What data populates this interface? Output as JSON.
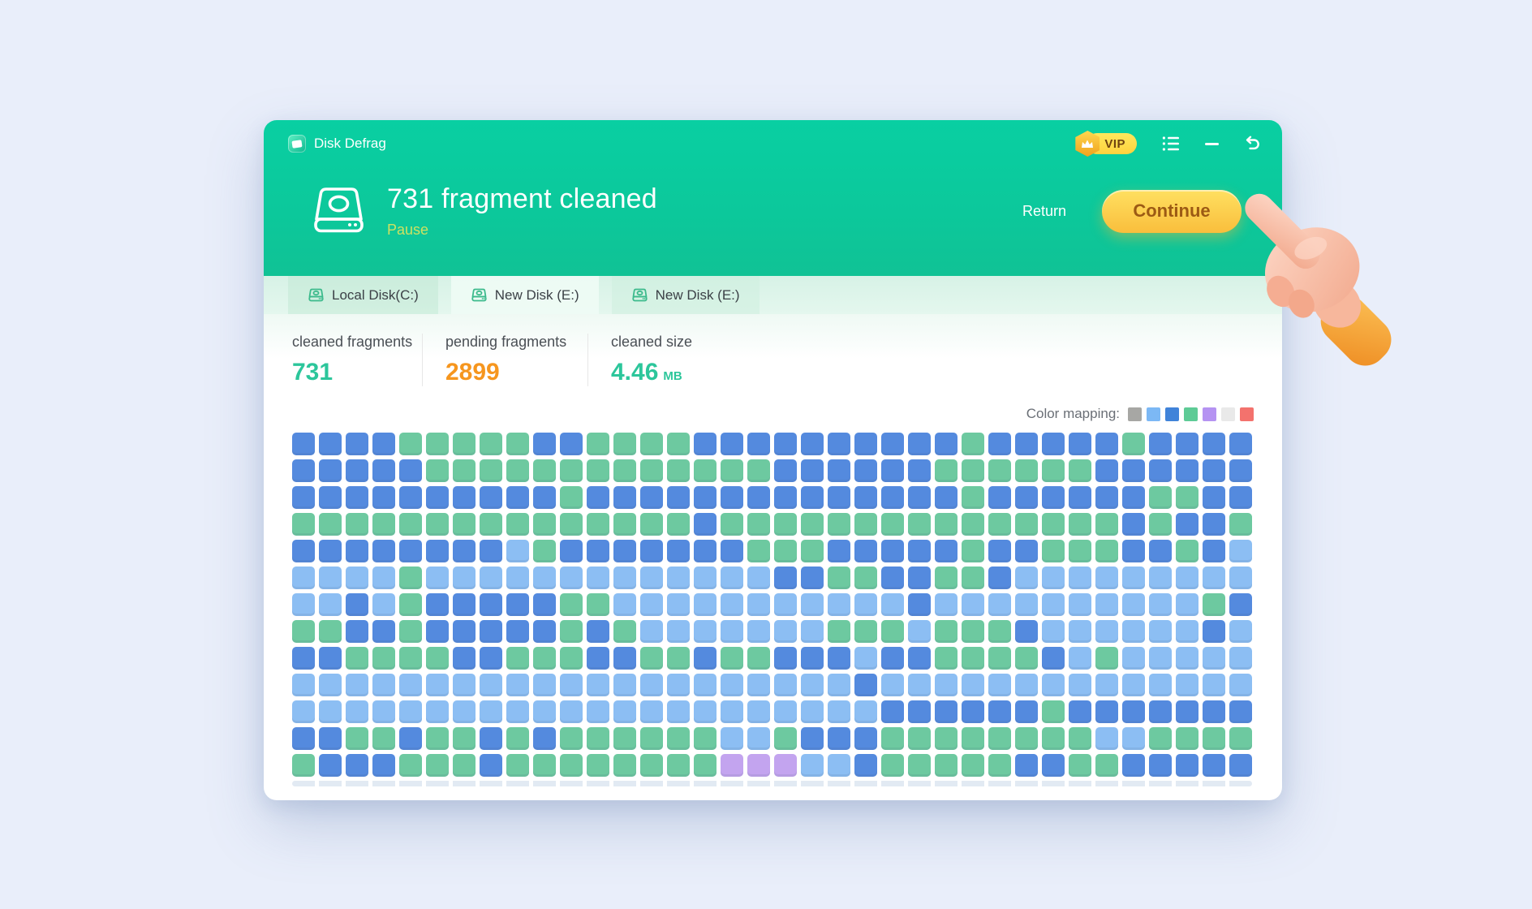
{
  "window": {
    "app_title": "Disk Defrag",
    "vip_badge": "VIP",
    "hero": {
      "title": "731 fragment cleaned",
      "pause_label": "Pause",
      "return_label": "Return",
      "continue_label": "Continue"
    },
    "tabs": [
      {
        "label": "Local Disk(C:)"
      },
      {
        "label": "New Disk (E:)"
      },
      {
        "label": "New Disk (E:)"
      }
    ],
    "stats": [
      {
        "label": "cleaned fragments",
        "value": "731",
        "color": "#2cc69b"
      },
      {
        "label": "pending fragments",
        "value": "2899",
        "color": "#f6961e"
      },
      {
        "label": "cleaned size",
        "value": "4.46",
        "unit": "MB",
        "color": "#2cc69b"
      }
    ],
    "color_mapping": {
      "label": "Color mapping:",
      "swatches": [
        {
          "name": "gray",
          "color": "#a7a7a4"
        },
        {
          "name": "light-blue",
          "color": "#7cb8f5"
        },
        {
          "name": "blue",
          "color": "#4083d9"
        },
        {
          "name": "green",
          "color": "#5ecb96"
        },
        {
          "name": "purple",
          "color": "#b593f2"
        },
        {
          "name": "light-gray",
          "color": "#e9e9e9"
        },
        {
          "name": "red",
          "color": "#f3726d"
        }
      ]
    }
  },
  "block_map": {
    "columns": 36,
    "cell_size": 28,
    "palette": {
      "B": "#548ade",
      "G": "#6dc9a0",
      "L": "#8cbef3",
      "P": "#c3a4ef"
    },
    "rows": [
      "BBBBGGGGGBBGGGGBBBBBBBBBBGBBBBBGBBBB",
      "BBBBBGGGGGGGGGGGGGBBBBBBGGGGGGBBBBBB",
      "BBBBBBBBBBGBBBBBBBBBBBBBBGBBBBBBGGBB",
      "GGGGGGGGGGGGGGGBGGGGGGGGGGGGGGGBGBBG",
      "BBBBBBBBLGBBBBBBBGGGBBBBBGBBGGGBBGBL",
      "LLLLGLLLLLLLLLLLLLBBGGBBGGBLLLLLLLLL",
      "LLBLGBBBBBGGLLLLLLLLLLLBLLLLLLLLLLGB",
      "GGBBGBBBBBGBGLLLLLLLGGGLGGGBLLLLLLBL",
      "BBGGGGBBGGGBBGGBGGBBBLBBGGGGBLGLLLLL",
      "LLLLLLLLLLLLLLLLLLLLLBLLLLLLLLLLLLLL",
      "LLLLLLLLLLLLLLLLLLLLLLBBBBBBGBBBBBBB",
      "BBGGBGGBGBGGGGGGLLGBBBGGGGGGGGLLGGGG",
      "GBBBGGGBGGGGGGGGPPPLLBGGGGGBBGGBBBBB"
    ]
  }
}
